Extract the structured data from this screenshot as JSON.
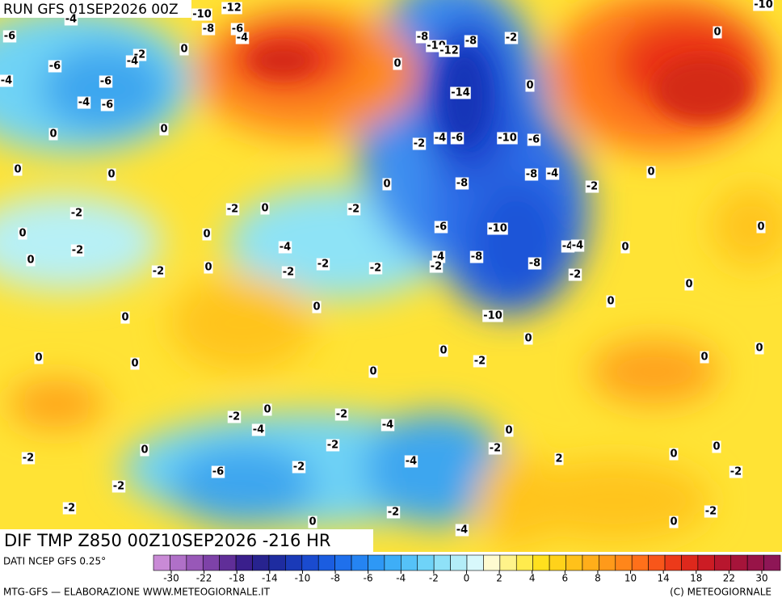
{
  "header": {
    "run": "RUN GFS 01SEP2026 00Z"
  },
  "map_title": "DIF TMP Z850 00Z10SEP2026 -216 HR",
  "legend": {
    "source": "DATI NCEP GFS 0.25°",
    "ticks": [
      -30,
      -22,
      -18,
      -14,
      -10,
      -8,
      -6,
      -4,
      -2,
      0,
      2,
      4,
      6,
      8,
      10,
      14,
      18,
      22,
      30
    ]
  },
  "footer": {
    "left": "MTG-GFS — ELABORAZIONE WWW.METEOGIORNALE.IT",
    "right": "(C) METEOGIORNALE"
  },
  "contour_labels": [
    -6,
    -4,
    -10,
    -12,
    -8,
    -6,
    -4,
    0,
    -2,
    -4,
    -6,
    -4,
    -6,
    -4,
    -6,
    0,
    0,
    0,
    0,
    0,
    -8,
    -10,
    -12,
    -8,
    -2,
    0,
    -10,
    0,
    -14,
    -2,
    -4,
    -6,
    -10,
    -6,
    -8,
    -4,
    0,
    -8,
    -2,
    0,
    -2,
    -2,
    0,
    -2,
    0,
    0,
    -6,
    -10,
    -4,
    -4,
    0,
    0,
    -2,
    0,
    -4,
    -8,
    -4,
    -2,
    -8,
    -2,
    -2,
    0,
    -2,
    -2,
    -2,
    0,
    0,
    0,
    -10,
    0,
    0,
    0,
    0,
    0,
    -2,
    0,
    0,
    0,
    -2,
    0,
    -2,
    -4,
    -4,
    0,
    -2,
    -2,
    0,
    -2,
    -4,
    -2,
    0,
    0,
    2,
    -6,
    -2,
    -2,
    -2,
    -2,
    -2,
    0,
    0,
    -4
  ]
}
